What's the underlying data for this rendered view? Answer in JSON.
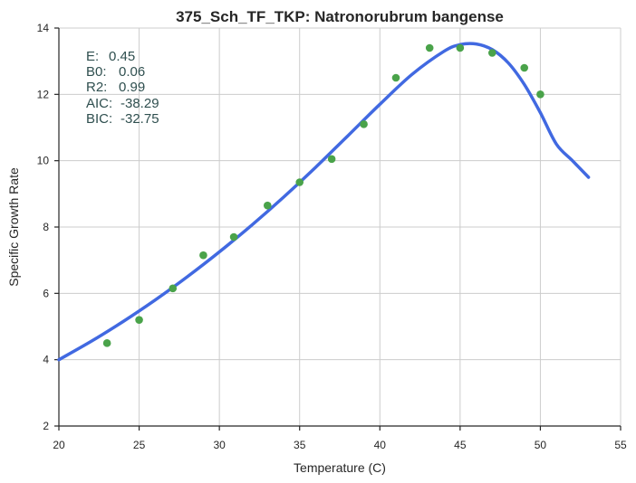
{
  "chart_data": {
    "type": "scatter",
    "title": "375_Sch_TF_TKP: Natronorubrum bangense",
    "xlabel": "Temperature (C)",
    "ylabel": "Specific Growth Rate",
    "xlim": [
      20,
      55
    ],
    "ylim": [
      2,
      14
    ],
    "xticks": [
      "20",
      "25",
      "30",
      "35",
      "40",
      "45",
      "50",
      "55"
    ],
    "yticks": [
      "2",
      "4",
      "6",
      "8",
      "10",
      "12",
      "14"
    ],
    "grid": true,
    "stats": [
      {
        "key": "E:",
        "value": "0.45"
      },
      {
        "key": "B0:",
        "value": "0.06"
      },
      {
        "key": "R2:",
        "value": "0.99"
      },
      {
        "key": "AIC:",
        "value": "-38.29"
      },
      {
        "key": "BIC:",
        "value": "-32.75"
      }
    ],
    "series": [
      {
        "kind": "points",
        "color": "#4aa34a",
        "x": [
          23,
          25,
          27.1,
          29,
          30.9,
          33,
          35,
          37,
          39,
          41,
          43.1,
          45,
          47,
          49,
          50
        ],
        "y": [
          4.5,
          5.2,
          6.15,
          7.15,
          7.7,
          8.65,
          9.35,
          10.05,
          11.1,
          12.5,
          13.4,
          13.4,
          13.25,
          12.8,
          12.0
        ]
      },
      {
        "kind": "fitted-curve",
        "color": "#4169e1",
        "x": [
          20,
          22,
          24,
          26,
          28,
          30,
          32,
          34,
          36,
          38,
          40,
          42,
          44,
          45,
          46,
          47,
          48,
          49,
          50,
          51,
          52,
          53
        ],
        "y": [
          4.0,
          4.55,
          5.15,
          5.8,
          6.5,
          7.25,
          8.05,
          8.9,
          9.8,
          10.75,
          11.7,
          12.6,
          13.3,
          13.5,
          13.52,
          13.35,
          12.95,
          12.3,
          11.45,
          10.5,
          10.0,
          9.5
        ]
      }
    ]
  }
}
